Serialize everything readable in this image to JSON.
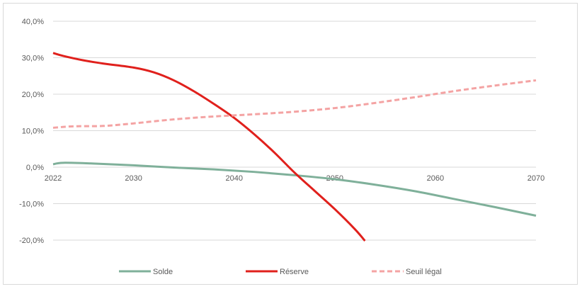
{
  "chart_data": {
    "type": "line",
    "title": "",
    "xlabel": "",
    "ylabel": "",
    "x_ticks": [
      "2022",
      "2030",
      "2040",
      "2050",
      "2060",
      "2070"
    ],
    "y_ticks": [
      "40,0%",
      "30,0%",
      "20,0%",
      "10,0%",
      "0,0%",
      "-10,0%",
      "-20,0%"
    ],
    "xlim": [
      2022,
      2070
    ],
    "ylim": [
      -20,
      40
    ],
    "grid": true,
    "legend_position": "bottom",
    "series": [
      {
        "name": "Solde",
        "color": "#7fb09a",
        "style": "solid",
        "x": [
          2022,
          2023,
          2026,
          2030,
          2034,
          2038,
          2042,
          2046,
          2050,
          2054,
          2058,
          2062,
          2066,
          2070
        ],
        "y": [
          0.8,
          1.2,
          1.0,
          0.5,
          -0.1,
          -0.6,
          -1.3,
          -2.2,
          -3.3,
          -4.8,
          -6.6,
          -8.8,
          -11.0,
          -13.3
        ]
      },
      {
        "name": "Réserve",
        "color": "#e0201c",
        "style": "solid",
        "x": [
          2022,
          2023,
          2025,
          2027,
          2030,
          2032,
          2034,
          2036,
          2038,
          2040,
          2042,
          2044,
          2046,
          2048,
          2050,
          2052,
          2053
        ],
        "y": [
          31.3,
          30.5,
          29.3,
          28.4,
          27.3,
          26.0,
          23.8,
          20.8,
          17.3,
          13.5,
          9.0,
          4.0,
          -1.5,
          -6.5,
          -11.5,
          -17.0,
          -20.2
        ]
      },
      {
        "name": "Seuil légal",
        "color": "#f4a3a3",
        "style": "dashed",
        "x": [
          2022,
          2024,
          2027,
          2030,
          2034,
          2038,
          2042,
          2046,
          2050,
          2054,
          2058,
          2062,
          2066,
          2070
        ],
        "y": [
          10.8,
          11.2,
          11.3,
          12.0,
          13.1,
          13.9,
          14.5,
          15.2,
          16.2,
          17.6,
          19.2,
          20.9,
          22.4,
          23.8
        ]
      }
    ]
  }
}
